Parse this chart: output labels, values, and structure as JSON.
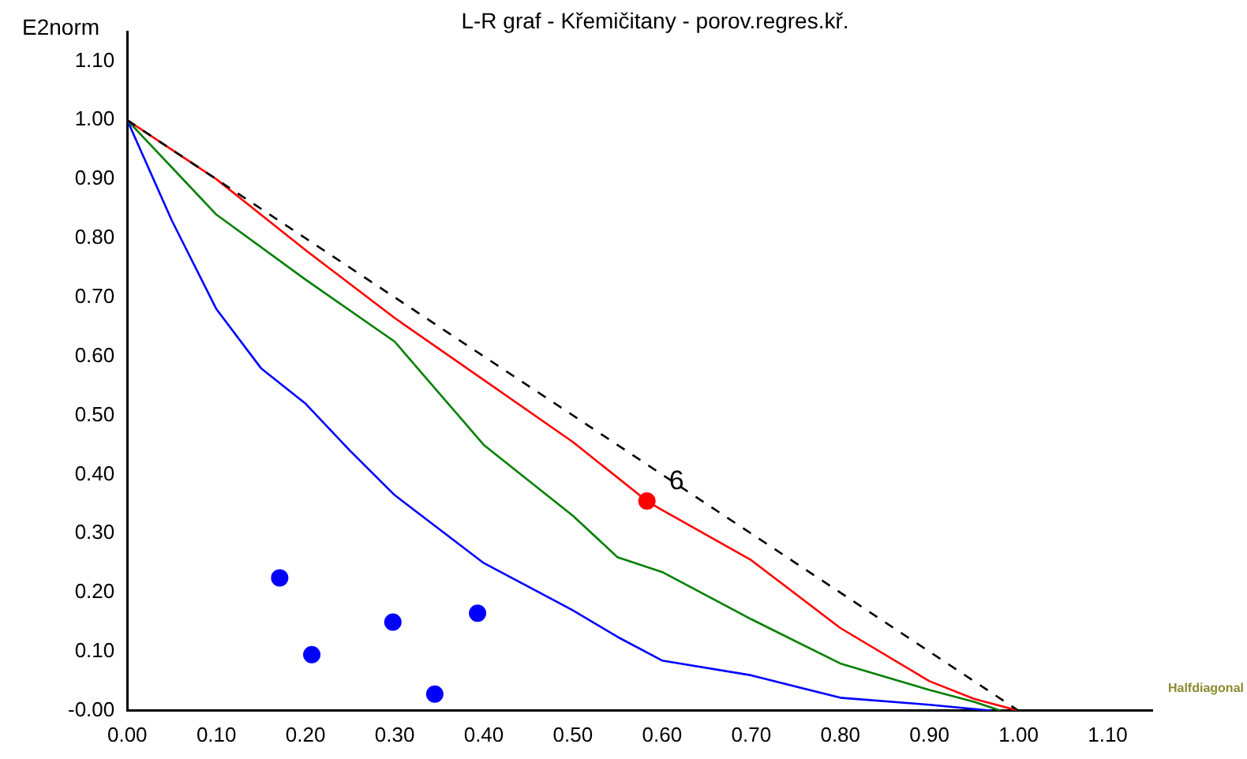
{
  "chart_data": {
    "type": "line",
    "title": "L-R graf - Křemičitany - porov.regres.kř.",
    "ylabel": "E2norm",
    "xlabel": "Halfdiagonal",
    "xlim": [
      0,
      1.15
    ],
    "ylim": [
      0,
      1.15
    ],
    "xticks": [
      {
        "value": 0,
        "label": "0.00"
      },
      {
        "value": 0.1,
        "label": "0.10"
      },
      {
        "value": 0.2,
        "label": "0.20"
      },
      {
        "value": 0.3,
        "label": "0.30"
      },
      {
        "value": 0.4,
        "label": "0.40"
      },
      {
        "value": 0.5,
        "label": "0.50"
      },
      {
        "value": 0.6,
        "label": "0.60"
      },
      {
        "value": 0.7,
        "label": "0.70"
      },
      {
        "value": 0.8,
        "label": "0.80"
      },
      {
        "value": 0.9,
        "label": "0.90"
      },
      {
        "value": 1,
        "label": "1.00"
      },
      {
        "value": 1.1,
        "label": "1.10"
      }
    ],
    "yticks": [
      {
        "value": 0,
        "label": "-0.00"
      },
      {
        "value": 0.1,
        "label": "0.10"
      },
      {
        "value": 0.2,
        "label": "0.20"
      },
      {
        "value": 0.3,
        "label": "0.30"
      },
      {
        "value": 0.4,
        "label": "0.40"
      },
      {
        "value": 0.5,
        "label": "0.50"
      },
      {
        "value": 0.6,
        "label": "0.60"
      },
      {
        "value": 0.7,
        "label": "0.70"
      },
      {
        "value": 0.8,
        "label": "0.80"
      },
      {
        "value": 0.9,
        "label": "0.90"
      },
      {
        "value": 1,
        "label": "1.00"
      },
      {
        "value": 1.1,
        "label": "1.10"
      }
    ],
    "grid": false,
    "legend": false,
    "series": [
      {
        "type": "line",
        "color": "#000000",
        "line_style": "dashed",
        "marker": "none",
        "x": [
          0,
          1
        ],
        "values": [
          1,
          0
        ]
      },
      {
        "type": "line",
        "color": "#ff0000",
        "line_style": "solid",
        "marker": "none",
        "x": [
          0,
          0.1,
          0.2,
          0.3,
          0.4,
          0.5,
          0.583,
          0.6,
          0.7,
          0.8,
          0.9,
          0.95,
          1
        ],
        "values": [
          1,
          0.9,
          0.78,
          0.665,
          0.56,
          0.455,
          0.355,
          0.34,
          0.255,
          0.14,
          0.05,
          0.02,
          0
        ]
      },
      {
        "type": "line",
        "color": "#008000",
        "line_style": "solid",
        "marker": "none",
        "x": [
          0,
          0.1,
          0.2,
          0.3,
          0.4,
          0.5,
          0.55,
          0.6,
          0.7,
          0.8,
          0.9,
          0.95,
          0.98
        ],
        "values": [
          1,
          0.84,
          0.73,
          0.625,
          0.45,
          0.33,
          0.26,
          0.235,
          0.155,
          0.08,
          0.035,
          0.015,
          0
        ]
      },
      {
        "type": "line",
        "color": "#0000ff",
        "line_style": "solid",
        "marker": "none",
        "x": [
          0,
          0.05,
          0.1,
          0.15,
          0.2,
          0.25,
          0.3,
          0.4,
          0.5,
          0.55,
          0.6,
          0.7,
          0.8,
          0.9,
          0.97
        ],
        "values": [
          1,
          0.83,
          0.68,
          0.58,
          0.52,
          0.44,
          0.365,
          0.25,
          0.17,
          0.125,
          0.085,
          0.06,
          0.022,
          0.01,
          0
        ]
      },
      {
        "type": "scatter",
        "color": "#0000ff",
        "marker": "circle",
        "x": [
          0.171,
          0.207,
          0.298,
          0.345,
          0.393
        ],
        "values": [
          0.225,
          0.095,
          0.15,
          0.028,
          0.165
        ]
      },
      {
        "type": "scatter",
        "color": "#ff0000",
        "marker": "circle",
        "x": [
          0.583
        ],
        "values": [
          0.355
        ]
      }
    ],
    "annotations": [
      {
        "text": "6",
        "x": 0.583,
        "y": 0.355
      }
    ]
  }
}
